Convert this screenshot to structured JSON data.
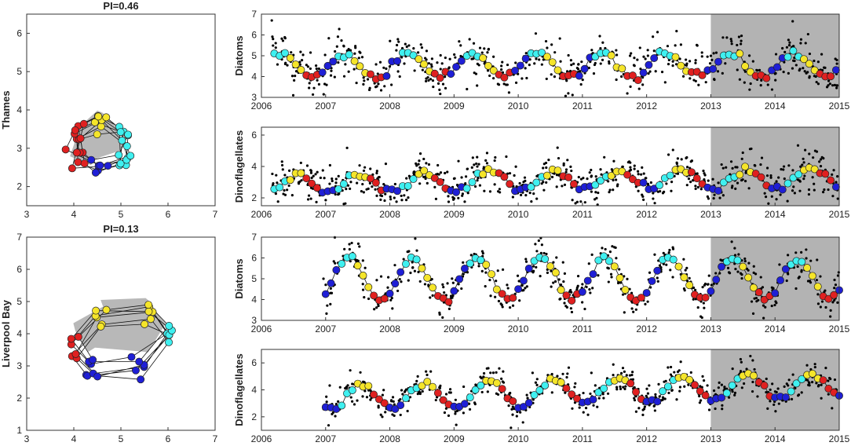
{
  "colors": {
    "winter": "#1f1fd6",
    "spring": "#3ff0f0",
    "summer": "#f5e52a",
    "autumn": "#e02020",
    "shade": "#b3b3b3",
    "hull": "#b8b8b8",
    "raw": "#000000"
  },
  "rows": [
    {
      "site": "Thames",
      "pi_label": "PI=0.46",
      "state_space": {
        "x_ticks": [
          "3",
          "4",
          "5",
          "6",
          "7"
        ],
        "y_ticks": [
          "2",
          "3",
          "4",
          "5",
          "6"
        ],
        "xlim": [
          3,
          7
        ],
        "ylim": [
          1.5,
          6.5
        ]
      },
      "diatoms": {
        "ylabel": "Diatoms",
        "ylim": [
          3,
          7
        ],
        "y_ticks": [
          "3",
          "4",
          "5",
          "6",
          "7"
        ],
        "start": 2006.2,
        "level": 4.55,
        "amp": 0.55,
        "drift": 0,
        "noise": 0.35,
        "peakPhase": 0.3
      },
      "dinos": {
        "ylabel": "Dinoflagellates",
        "ylim": [
          1.5,
          6.5
        ],
        "y_ticks": [
          "2",
          "4",
          "6"
        ],
        "start": 2006.2,
        "level": 2.9,
        "amp": 0.6,
        "drift": 0.12,
        "noise": 0.4,
        "peakPhase": 0.55
      }
    },
    {
      "site": "Liverpool Bay",
      "pi_label": "PI=0.13",
      "state_space": {
        "x_ticks": [
          "3",
          "4",
          "5",
          "6",
          "7"
        ],
        "y_ticks": [
          "1",
          "2",
          "3",
          "4",
          "5",
          "6",
          "7"
        ],
        "xlim": [
          3,
          7
        ],
        "ylim": [
          1,
          7
        ]
      },
      "diatoms": {
        "ylabel": "Diatoms",
        "ylim": [
          3,
          7
        ],
        "y_ticks": [
          "3",
          "4",
          "5",
          "6",
          "7"
        ],
        "start": 2007.0,
        "level": 5.0,
        "amp": 1.0,
        "drift": 0,
        "noise": 0.3,
        "peakPhase": 0.35
      },
      "dinos": {
        "ylabel": "Dinoflagellates",
        "ylim": [
          1,
          7
        ],
        "y_ticks": [
          "2",
          "4",
          "6"
        ],
        "start": 2007.0,
        "level": 3.3,
        "amp": 0.9,
        "drift": 0.35,
        "noise": 0.35,
        "peakPhase": 0.55
      }
    }
  ],
  "time_axis": {
    "xlim": [
      2006,
      2015
    ],
    "ticks": [
      "2006",
      "2007",
      "2008",
      "2009",
      "2010",
      "2011",
      "2012",
      "2013",
      "2014",
      "2015"
    ],
    "forecast_start": 2013
  },
  "chart_data": {
    "type": "scatter",
    "description_series": [
      "Thames Diatoms",
      "Thames Dinoflagellates",
      "Liverpool Bay Diatoms",
      "Liverpool Bay Dinoflagellates"
    ],
    "season_colors": [
      "winter",
      "spring",
      "summer",
      "autumn"
    ],
    "x_range_years": [
      2006,
      2015
    ]
  }
}
